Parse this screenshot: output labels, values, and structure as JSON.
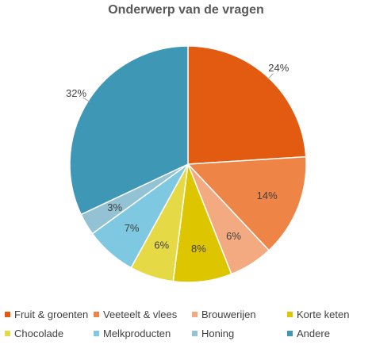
{
  "chart_data": {
    "type": "pie",
    "title": "Onderwerp van de vragen",
    "legend_position": "bottom",
    "start_angle_deg": 0,
    "direction": "clockwise",
    "slices": [
      {
        "name": "Fruit & groenten",
        "value": 24,
        "label": "24%",
        "color": "#E35B10"
      },
      {
        "name": "Veeteelt & vlees",
        "value": 14,
        "label": "14%",
        "color": "#EE8547"
      },
      {
        "name": "Brouwerijen",
        "value": 6,
        "label": "6%",
        "color": "#F3AA80"
      },
      {
        "name": "Korte keten",
        "value": 8,
        "label": "8%",
        "color": "#DDC500"
      },
      {
        "name": "Chocolade",
        "value": 6,
        "label": "6%",
        "color": "#E6D946"
      },
      {
        "name": "Melkproducten",
        "value": 7,
        "label": "7%",
        "color": "#7EC8E2"
      },
      {
        "name": "Honing",
        "value": 3,
        "label": "3%",
        "color": "#92C2D4"
      },
      {
        "name": "Andere",
        "value": 32,
        "label": "32%",
        "color": "#3F97B6"
      }
    ]
  }
}
